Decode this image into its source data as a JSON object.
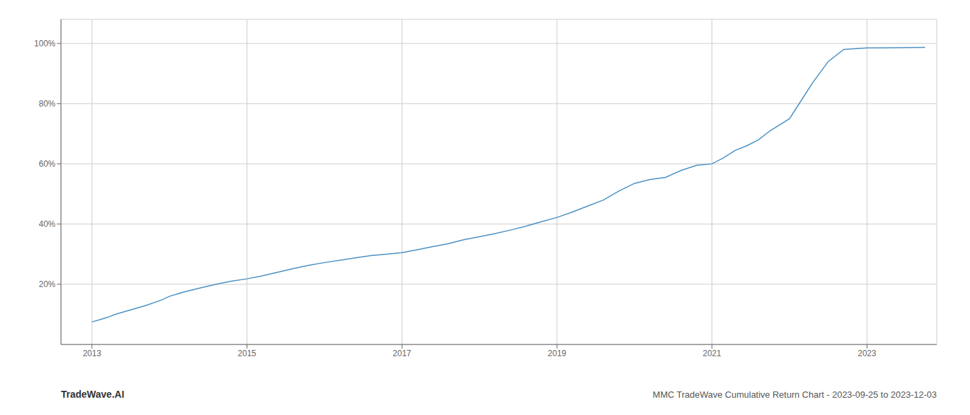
{
  "chart_data": {
    "type": "line",
    "title": "MMC TradeWave Cumulative Return Chart - 2023-09-25 to 2023-12-03",
    "annotations": [
      "TradeWave.AI"
    ],
    "x": [
      2013.0,
      2013.1,
      2013.2,
      2013.3,
      2013.5,
      2013.7,
      2013.9,
      2014.0,
      2014.2,
      2014.4,
      2014.6,
      2014.8,
      2015.0,
      2015.2,
      2015.4,
      2015.6,
      2015.8,
      2016.0,
      2016.2,
      2016.4,
      2016.6,
      2016.8,
      2017.0,
      2017.2,
      2017.4,
      2017.6,
      2017.8,
      2018.0,
      2018.2,
      2018.4,
      2018.6,
      2018.8,
      2019.0,
      2019.2,
      2019.4,
      2019.6,
      2019.8,
      2020.0,
      2020.2,
      2020.4,
      2020.6,
      2020.8,
      2021.0,
      2021.15,
      2021.3,
      2021.45,
      2021.6,
      2021.75,
      2022.0,
      2022.15,
      2022.3,
      2022.5,
      2022.7,
      2023.0,
      2023.75
    ],
    "values": [
      0.075,
      0.082,
      0.09,
      0.1,
      0.115,
      0.13,
      0.148,
      0.16,
      0.175,
      0.188,
      0.2,
      0.21,
      0.218,
      0.228,
      0.24,
      0.252,
      0.263,
      0.272,
      0.28,
      0.288,
      0.295,
      0.3,
      0.305,
      0.315,
      0.325,
      0.335,
      0.348,
      0.358,
      0.368,
      0.38,
      0.393,
      0.408,
      0.422,
      0.44,
      0.46,
      0.48,
      0.51,
      0.535,
      0.548,
      0.555,
      0.578,
      0.595,
      0.6,
      0.62,
      0.645,
      0.66,
      0.68,
      0.71,
      0.75,
      0.81,
      0.87,
      0.94,
      0.98,
      0.985,
      0.987
    ],
    "color": "#4a90c4",
    "xlim": [
      2012.6,
      2023.9
    ],
    "ylim": [
      0.0,
      1.08
    ],
    "xticks": [
      2013,
      2015,
      2017,
      2019,
      2021,
      2023
    ],
    "yticks": [
      {
        "value": 0.2,
        "label": "20%"
      },
      {
        "value": 0.4,
        "label": "40%"
      },
      {
        "value": 0.6,
        "label": "60%"
      },
      {
        "value": 0.8,
        "label": "80%"
      },
      {
        "value": 1.0,
        "label": "100%"
      }
    ],
    "grid": true
  }
}
